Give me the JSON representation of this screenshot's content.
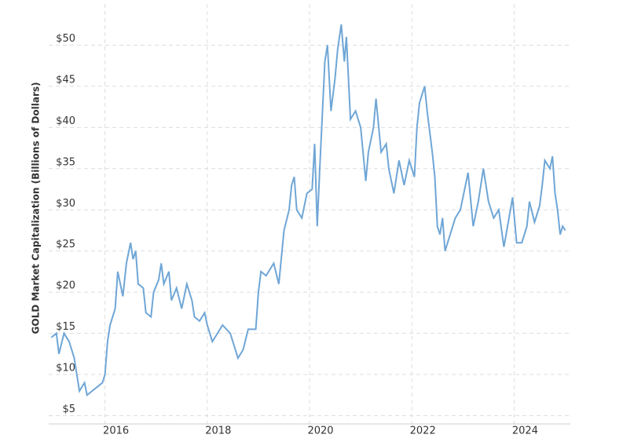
{
  "chart_data": {
    "type": "line",
    "y_label": "GOLD Market Capitalization (Billions of Dollars)",
    "x": [
      2014.95,
      2015.05,
      2015.1,
      2015.2,
      2015.3,
      2015.4,
      2015.45,
      2015.5,
      2015.6,
      2015.65,
      2015.75,
      2015.85,
      2015.95,
      2016.0,
      2016.05,
      2016.1,
      2016.2,
      2016.25,
      2016.35,
      2016.42,
      2016.5,
      2016.55,
      2016.6,
      2016.65,
      2016.75,
      2016.8,
      2016.9,
      2016.95,
      2017.05,
      2017.1,
      2017.15,
      2017.25,
      2017.3,
      2017.4,
      2017.5,
      2017.6,
      2017.7,
      2017.75,
      2017.85,
      2017.95,
      2018.0,
      2018.1,
      2018.2,
      2018.3,
      2018.45,
      2018.55,
      2018.6,
      2018.7,
      2018.8,
      2018.95,
      2019.0,
      2019.05,
      2019.15,
      2019.3,
      2019.4,
      2019.5,
      2019.6,
      2019.65,
      2019.7,
      2019.75,
      2019.85,
      2019.95,
      2020.05,
      2020.1,
      2020.15,
      2020.2,
      2020.3,
      2020.35,
      2020.42,
      2020.5,
      2020.55,
      2020.62,
      2020.68,
      2020.72,
      2020.8,
      2020.9,
      2021.0,
      2021.1,
      2021.15,
      2021.25,
      2021.3,
      2021.4,
      2021.5,
      2021.55,
      2021.65,
      2021.75,
      2021.85,
      2021.95,
      2022.05,
      2022.1,
      2022.15,
      2022.25,
      2022.3,
      2022.4,
      2022.45,
      2022.5,
      2022.55,
      2022.6,
      2022.65,
      2022.75,
      2022.85,
      2022.95,
      2023.05,
      2023.1,
      2023.2,
      2023.3,
      2023.4,
      2023.5,
      2023.6,
      2023.7,
      2023.8,
      2023.9,
      2023.97,
      2024.05,
      2024.15,
      2024.25,
      2024.3,
      2024.4,
      2024.5,
      2024.55,
      2024.6,
      2024.7,
      2024.75,
      2024.8,
      2024.85,
      2024.9,
      2024.95,
      2025.0
    ],
    "series": [
      {
        "name": "GOLD",
        "color": "#6fa6d6",
        "values": [
          14.5,
          15,
          12.5,
          15,
          14,
          12,
          10,
          8,
          9,
          7.5,
          8,
          8.5,
          9,
          10,
          14,
          16,
          18,
          22.5,
          19.5,
          23.5,
          26,
          24,
          25,
          21,
          20.5,
          17.5,
          17,
          20,
          21.5,
          23.5,
          21,
          22.5,
          19,
          20.5,
          18,
          21,
          19,
          17,
          16.5,
          17.5,
          16,
          14,
          15,
          16,
          15,
          13,
          12,
          13,
          15.5,
          15.5,
          20,
          22.5,
          22,
          23.5,
          21,
          27.5,
          30,
          33,
          34,
          30,
          29,
          32,
          32.5,
          38,
          28,
          35,
          48,
          50,
          42,
          46,
          49.5,
          52.5,
          48,
          51,
          41,
          42,
          40,
          33.5,
          37,
          40,
          43.5,
          37,
          38,
          35,
          32,
          36,
          33,
          36,
          34,
          40,
          43,
          45,
          42,
          37,
          34,
          28,
          27,
          29,
          25,
          27,
          29,
          30,
          33,
          34.5,
          28,
          31,
          35,
          31,
          29,
          30,
          25.5,
          29,
          31.5,
          26,
          26,
          28,
          31,
          28.5,
          30.5,
          33,
          36,
          35,
          36.5,
          32,
          30,
          27,
          28,
          27.5
        ]
      }
    ],
    "xlim": [
      2014.9,
      2025.1
    ],
    "xticks": [
      2016,
      2018,
      2020,
      2022,
      2024
    ],
    "ylim": [
      4,
      55
    ],
    "yticks": [
      {
        "value": 5,
        "label": "$5"
      },
      {
        "value": 10,
        "label": "$10"
      },
      {
        "value": 15,
        "label": "$15"
      },
      {
        "value": 20,
        "label": "$20"
      },
      {
        "value": 25,
        "label": "$25"
      },
      {
        "value": 30,
        "label": "$30"
      },
      {
        "value": 35,
        "label": "$35"
      },
      {
        "value": 40,
        "label": "$40"
      },
      {
        "value": 45,
        "label": "$45"
      },
      {
        "value": 50,
        "label": "$50"
      }
    ],
    "grid": true
  }
}
